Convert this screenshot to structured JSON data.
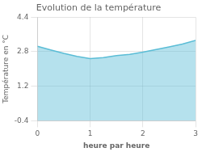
{
  "chart_data": {
    "type": "area",
    "title": "Evolution de la température",
    "xlabel": "heure par heure",
    "ylabel": "Température en °C",
    "x": [
      0,
      0.25,
      0.5,
      0.75,
      1.0,
      1.25,
      1.5,
      1.75,
      2.0,
      2.25,
      2.5,
      2.75,
      3.0
    ],
    "values": [
      3.05,
      2.88,
      2.72,
      2.58,
      2.48,
      2.53,
      2.62,
      2.68,
      2.78,
      2.9,
      3.02,
      3.15,
      3.32
    ],
    "xlim": [
      0,
      3
    ],
    "ylim": [
      -0.4,
      4.4
    ],
    "xticks": [
      0,
      1,
      2,
      3
    ],
    "yticks": [
      -0.4,
      1.2,
      2.8,
      4.4
    ],
    "color": "#5bbdd6",
    "grid": true
  }
}
